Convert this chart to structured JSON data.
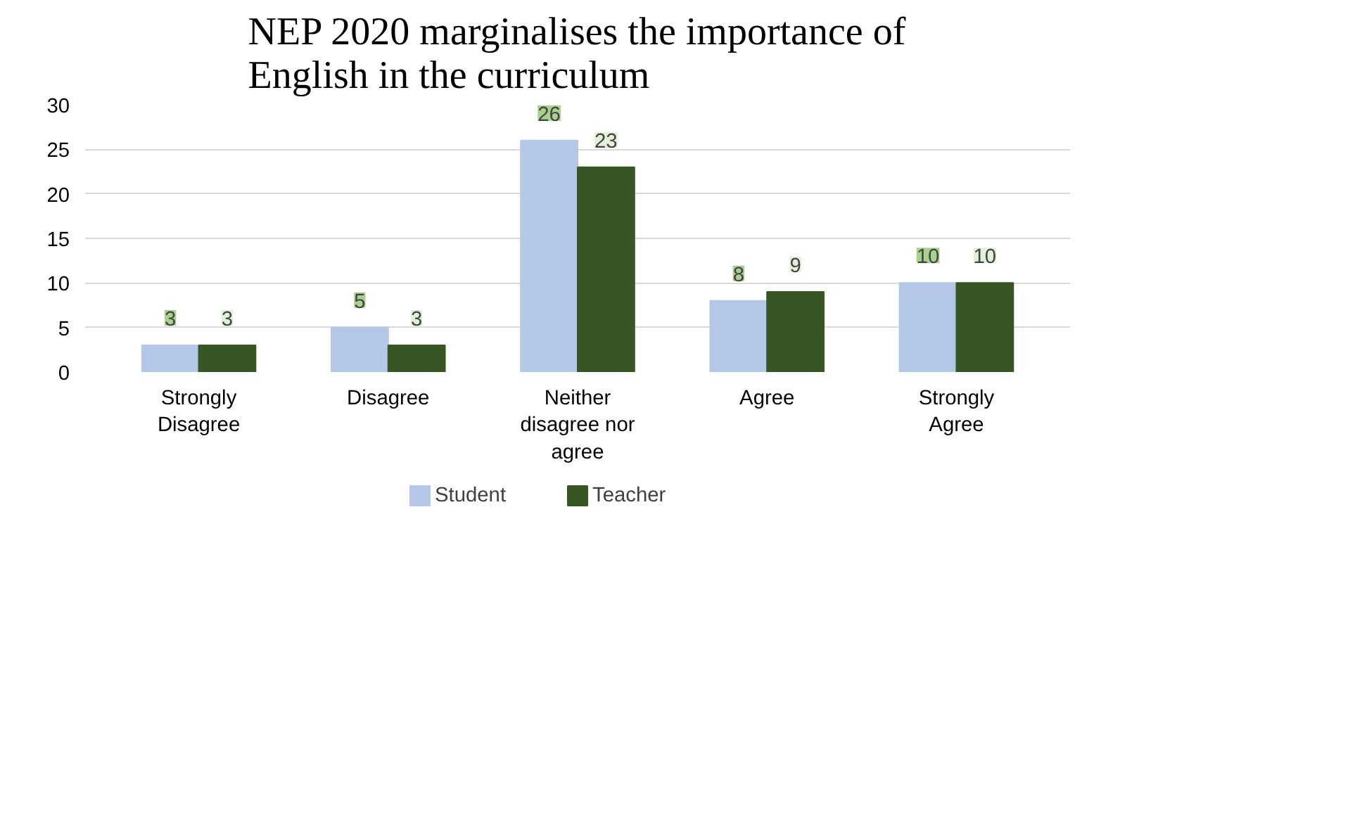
{
  "chart_data": {
    "type": "bar",
    "title": "NEP 2020 marginalises the importance of English in the curriculum",
    "categories": [
      "Strongly Disagree",
      "Disagree",
      "Neither disagree nor agree",
      "Agree",
      "Strongly Agree"
    ],
    "series": [
      {
        "name": "Student",
        "color": "#b4c7e7",
        "values": [
          3,
          5,
          26,
          8,
          10
        ]
      },
      {
        "name": "Teacher",
        "color": "#375623",
        "values": [
          3,
          3,
          23,
          9,
          10
        ]
      }
    ],
    "ylim": [
      0,
      30
    ],
    "yticks": [
      0,
      5,
      10,
      15,
      20,
      25,
      30
    ],
    "grid": "y",
    "legend": "bottom",
    "data_labels": true
  }
}
